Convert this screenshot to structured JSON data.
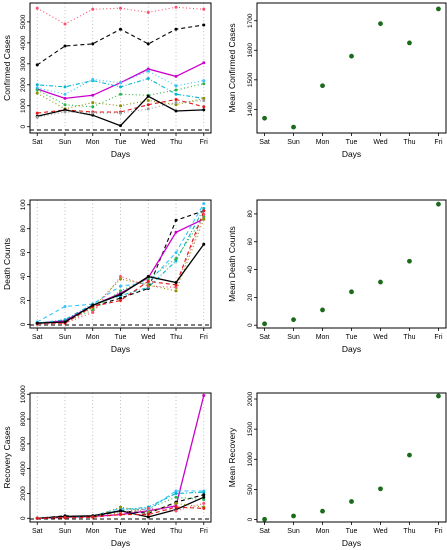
{
  "chart_data": [
    {
      "id": "confirmed-lines",
      "type": "line",
      "categories": [
        "Sat",
        "Sun",
        "Mon",
        "Tue",
        "Wed",
        "Thu",
        "Fri"
      ],
      "xlabel": "Days",
      "ylabel": "Confirmed Cases",
      "ylim": [
        -300,
        5900
      ],
      "yticks": [
        0,
        1000,
        2000,
        3000,
        4000,
        5000
      ],
      "grid": "vertical dotted",
      "series": [
        {
          "color": "#ff4d6d",
          "dash": "dotted",
          "values": [
            5650,
            4900,
            5600,
            5650,
            5450,
            5700,
            5600
          ]
        },
        {
          "color": "#000000",
          "dash": "dashed",
          "values": [
            2950,
            3850,
            3950,
            4650,
            3950,
            4650,
            4850
          ]
        },
        {
          "color": "#cc00cc",
          "dash": "solid",
          "values": [
            1800,
            1350,
            1500,
            2100,
            2750,
            2400,
            3050
          ]
        },
        {
          "color": "#00b7d0",
          "dash": "dotdash",
          "values": [
            2000,
            1900,
            2200,
            1900,
            2300,
            1550,
            1350
          ]
        },
        {
          "color": "#35c3ff",
          "dash": "dotted",
          "values": [
            1850,
            1550,
            2250,
            2100,
            2650,
            1950,
            2200
          ]
        },
        {
          "color": "#2ab34a",
          "dash": "dotted",
          "values": [
            1750,
            1050,
            950,
            1550,
            1500,
            1750,
            2050
          ]
        },
        {
          "color": "#8f8f00",
          "dash": "dotted",
          "values": [
            1600,
            850,
            1150,
            1000,
            1250,
            1050,
            1350
          ]
        },
        {
          "color": "#e41a1c",
          "dash": "dashed",
          "values": [
            650,
            800,
            700,
            700,
            1050,
            1300,
            950
          ]
        },
        {
          "color": "#000000",
          "dash": "solid",
          "values": [
            500,
            800,
            550,
            50,
            1450,
            750,
            800
          ]
        },
        {
          "color": "#999999",
          "dash": "dotted",
          "values": [
            450,
            700,
            650,
            650,
            850,
            1150,
            1250
          ]
        }
      ]
    },
    {
      "id": "confirmed-mean",
      "type": "scatter",
      "categories": [
        "Sat",
        "Sun",
        "Mon",
        "Tue",
        "Wed",
        "Thu",
        "Fri"
      ],
      "xlabel": "Days",
      "ylabel": "Mean Confirmed Cases",
      "ylim": [
        1320,
        1760
      ],
      "yticks": [
        1400,
        1500,
        1600,
        1700
      ],
      "color": "#1a6b1a",
      "values": [
        1370,
        1340,
        1480,
        1580,
        1690,
        1625,
        1740
      ]
    },
    {
      "id": "deaths-lines",
      "type": "line",
      "categories": [
        "Sat",
        "Sun",
        "Mon",
        "Tue",
        "Wed",
        "Thu",
        "Fri"
      ],
      "xlabel": "Days",
      "ylabel": "Death Counts",
      "ylim": [
        -3,
        104
      ],
      "yticks": [
        0,
        20,
        40,
        60,
        80,
        100
      ],
      "grid": "vertical dotted",
      "series": [
        {
          "color": "#000000",
          "dash": "dashed",
          "values": [
            1,
            3,
            15,
            22,
            30,
            87,
            95
          ]
        },
        {
          "color": "#cc00cc",
          "dash": "solid",
          "values": [
            1,
            3,
            16,
            26,
            39,
            77,
            88
          ]
        },
        {
          "color": "#35c3ff",
          "dash": "dashed",
          "values": [
            2,
            15,
            17,
            32,
            35,
            60,
            101
          ]
        },
        {
          "color": "#00b7d0",
          "dash": "dotdash",
          "values": [
            1,
            4,
            17,
            24,
            31,
            53,
            97
          ]
        },
        {
          "color": "#2ab34a",
          "dash": "dotted",
          "values": [
            1,
            2,
            12,
            28,
            38,
            55,
            90
          ]
        },
        {
          "color": "#ff4d6d",
          "dash": "dotted",
          "values": [
            0,
            1,
            10,
            40,
            32,
            31,
            92
          ]
        },
        {
          "color": "#8f8f00",
          "dash": "dotted",
          "values": [
            1,
            2,
            14,
            38,
            33,
            28,
            88
          ]
        },
        {
          "color": "#e41a1c",
          "dash": "dashed",
          "values": [
            1,
            1,
            15,
            20,
            36,
            33,
            95
          ]
        },
        {
          "color": "#000000",
          "dash": "solid",
          "values": [
            1,
            2,
            16,
            25,
            40,
            35,
            67
          ]
        }
      ]
    },
    {
      "id": "deaths-mean",
      "type": "scatter",
      "categories": [
        "Sat",
        "Sun",
        "Mon",
        "Tue",
        "Wed",
        "Thu",
        "Fri"
      ],
      "xlabel": "Days",
      "ylabel": "Mean Death Counts",
      "ylim": [
        -2,
        90
      ],
      "yticks": [
        0,
        20,
        40,
        60,
        80
      ],
      "color": "#1a6b1a",
      "values": [
        1,
        4,
        11,
        24,
        31,
        46,
        87
      ]
    },
    {
      "id": "recovery-lines",
      "type": "line",
      "categories": [
        "Sat",
        "Sun",
        "Mon",
        "Tue",
        "Wed",
        "Thu",
        "Fri"
      ],
      "xlabel": "Days",
      "ylabel": "Recovery Cases",
      "ylim": [
        -300,
        10100
      ],
      "yticks": [
        0,
        2000,
        4000,
        6000,
        8000,
        10000
      ],
      "grid": "vertical dotted",
      "series": [
        {
          "color": "#cc00cc",
          "dash": "solid",
          "values": [
            0,
            80,
            150,
            300,
            600,
            1000,
            9900
          ]
        },
        {
          "color": "#35c3ff",
          "dash": "dashed",
          "values": [
            20,
            120,
            200,
            800,
            700,
            2200,
            2200
          ]
        },
        {
          "color": "#00b7d0",
          "dash": "dotdash",
          "values": [
            10,
            100,
            150,
            650,
            900,
            2000,
            2100
          ]
        },
        {
          "color": "#000000",
          "dash": "dashed",
          "values": [
            0,
            200,
            100,
            600,
            400,
            1300,
            1900
          ]
        },
        {
          "color": "#2ab34a",
          "dash": "dotted",
          "values": [
            0,
            80,
            120,
            500,
            800,
            1700,
            1500
          ]
        },
        {
          "color": "#000000",
          "dash": "solid",
          "values": [
            0,
            150,
            200,
            600,
            100,
            700,
            1700
          ]
        },
        {
          "color": "#8f8f00",
          "dash": "dotted",
          "values": [
            0,
            50,
            100,
            900,
            500,
            1200,
            900
          ]
        },
        {
          "color": "#ff4d6d",
          "dash": "dotted",
          "values": [
            0,
            60,
            100,
            400,
            800,
            600,
            1200
          ]
        },
        {
          "color": "#e41a1c",
          "dash": "dashed",
          "values": [
            0,
            40,
            80,
            300,
            300,
            900,
            800
          ]
        }
      ]
    },
    {
      "id": "recovery-mean",
      "type": "scatter",
      "categories": [
        "Sat",
        "Sun",
        "Mon",
        "Tue",
        "Wed",
        "Thu",
        "Fri"
      ],
      "xlabel": "Days",
      "ylabel": "Mean Recovery",
      "ylim": [
        -40,
        2100
      ],
      "yticks": [
        0,
        500,
        1000,
        1500,
        2000
      ],
      "color": "#1a6b1a",
      "values": [
        5,
        60,
        140,
        300,
        510,
        1070,
        2050
      ]
    }
  ]
}
